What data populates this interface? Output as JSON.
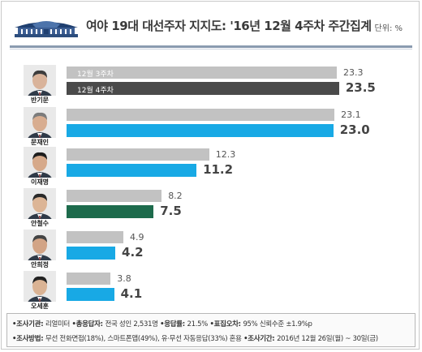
{
  "header": {
    "title": "여야 19대 대선주자 지지도: '16년 12월 4주차 주간집계",
    "unit": "단위: %"
  },
  "colors": {
    "prev": "#c2c2c2",
    "blue": "#18a9e5",
    "dark": "#4a4a4a",
    "green": "#1d6b4c"
  },
  "chart_data": {
    "type": "bar",
    "orientation": "horizontal",
    "categories": [
      "반기문",
      "문재인",
      "이재명",
      "안철수",
      "안희정",
      "오세훈"
    ],
    "series": [
      {
        "name": "12월 3주차",
        "values": [
          23.3,
          23.1,
          12.3,
          8.2,
          4.9,
          3.8
        ]
      },
      {
        "name": "12월 4주차",
        "values": [
          23.5,
          23.0,
          11.2,
          7.5,
          4.2,
          4.1
        ]
      }
    ],
    "current_bar_colors": [
      "#4a4a4a",
      "#18a9e5",
      "#18a9e5",
      "#1d6b4c",
      "#18a9e5",
      "#18a9e5"
    ],
    "xlim": [
      0,
      25
    ]
  },
  "footer": {
    "line1": [
      {
        "k": "•조사기관: ",
        "v": "리얼미터 "
      },
      {
        "k": "•총응답자: ",
        "v": "전국 성인 2,531명 "
      },
      {
        "k": "•응답률: ",
        "v": "21.5% "
      },
      {
        "k": "•표집오차: ",
        "v": "95% 신뢰수준 ±1.9%p"
      }
    ],
    "line2": [
      {
        "k": "•조사방법: ",
        "v": "무선 전화면접(18%), 스마트폰앱(49%), 유·무선 자동응답(33%) 혼용 "
      },
      {
        "k": "•조사기간: ",
        "v": "2016년 12월 26일(월) ~ 30일(금)"
      }
    ]
  }
}
